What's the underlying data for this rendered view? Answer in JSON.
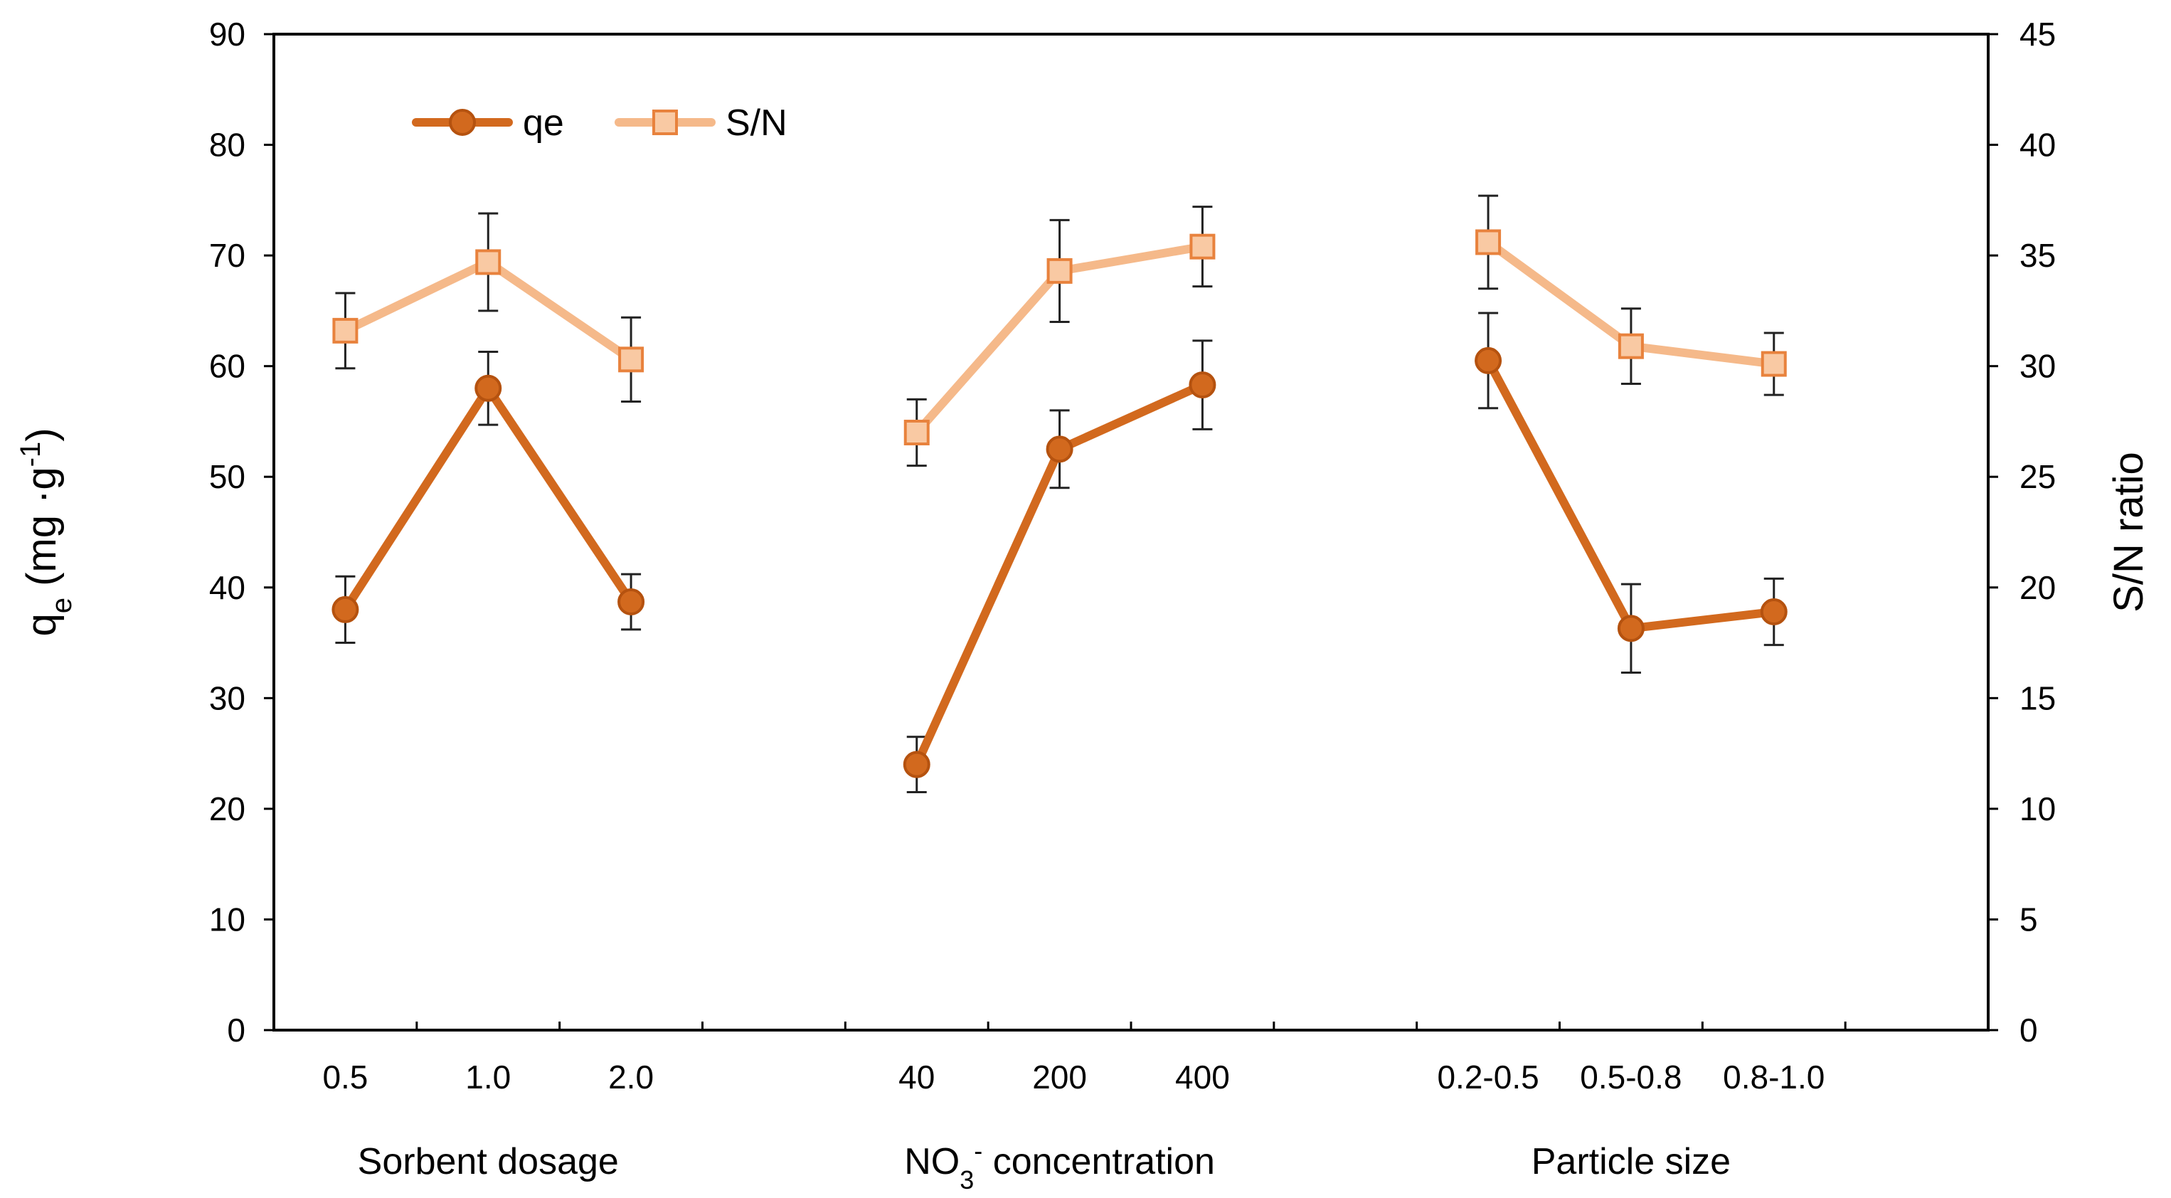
{
  "chart_data": {
    "type": "line",
    "title": "",
    "ylabel_left": {
      "main": "q",
      "sub": "e",
      "unit_pre": "(mg ·g",
      "unit_sup": "-1",
      "unit_post": ")"
    },
    "ylabel_right": "S/N ratio",
    "ylim_left": [
      0,
      90
    ],
    "ylim_right": [
      0,
      45
    ],
    "yticks_left": [
      "0",
      "10",
      "20",
      "30",
      "40",
      "50",
      "60",
      "70",
      "80",
      "90"
    ],
    "yticks_right": [
      "0",
      "5",
      "10",
      "15",
      "20",
      "25",
      "30",
      "35",
      "40",
      "45"
    ],
    "groups": [
      {
        "label": "Sorbent dosage",
        "label_pre": "Sorbent dosage",
        "label_sub": "",
        "label_sup": "",
        "label_post": "",
        "categories": [
          "0.5",
          "1.0",
          "2.0"
        ]
      },
      {
        "label": "NO3- concentration",
        "label_pre": "NO",
        "label_sub": "3",
        "label_sup": "-",
        "label_post": " concentration",
        "categories": [
          "40",
          "200",
          "400"
        ]
      },
      {
        "label": "Particle size",
        "label_pre": "Particle size",
        "label_sub": "",
        "label_sup": "",
        "label_post": "",
        "categories": [
          "0.2-0.5",
          "0.5-0.8",
          "0.8-1.0"
        ]
      }
    ],
    "series": [
      {
        "name": "qe",
        "axis": "left",
        "marker": "circle",
        "color": "#D2691E",
        "values": [
          [
            38,
            58,
            38.7
          ],
          [
            24,
            52.5,
            58.3
          ],
          [
            60.5,
            36.3,
            37.8
          ]
        ],
        "errors": [
          [
            3.0,
            3.3,
            2.5
          ],
          [
            2.5,
            3.5,
            4.0
          ],
          [
            4.3,
            4.0,
            3.0
          ]
        ]
      },
      {
        "name": "S/N",
        "axis": "right",
        "marker": "square",
        "color": "#F5B98A",
        "values": [
          [
            31.6,
            34.7,
            30.3
          ],
          [
            27.0,
            34.3,
            35.4
          ],
          [
            35.6,
            30.9,
            30.1
          ]
        ],
        "errors": [
          [
            1.7,
            2.2,
            1.9
          ],
          [
            1.5,
            2.3,
            1.8
          ],
          [
            2.1,
            1.7,
            1.4
          ]
        ]
      }
    ],
    "legend": {
      "position": "top-left",
      "entries": [
        "qe",
        "S/N"
      ]
    },
    "grid": false
  }
}
